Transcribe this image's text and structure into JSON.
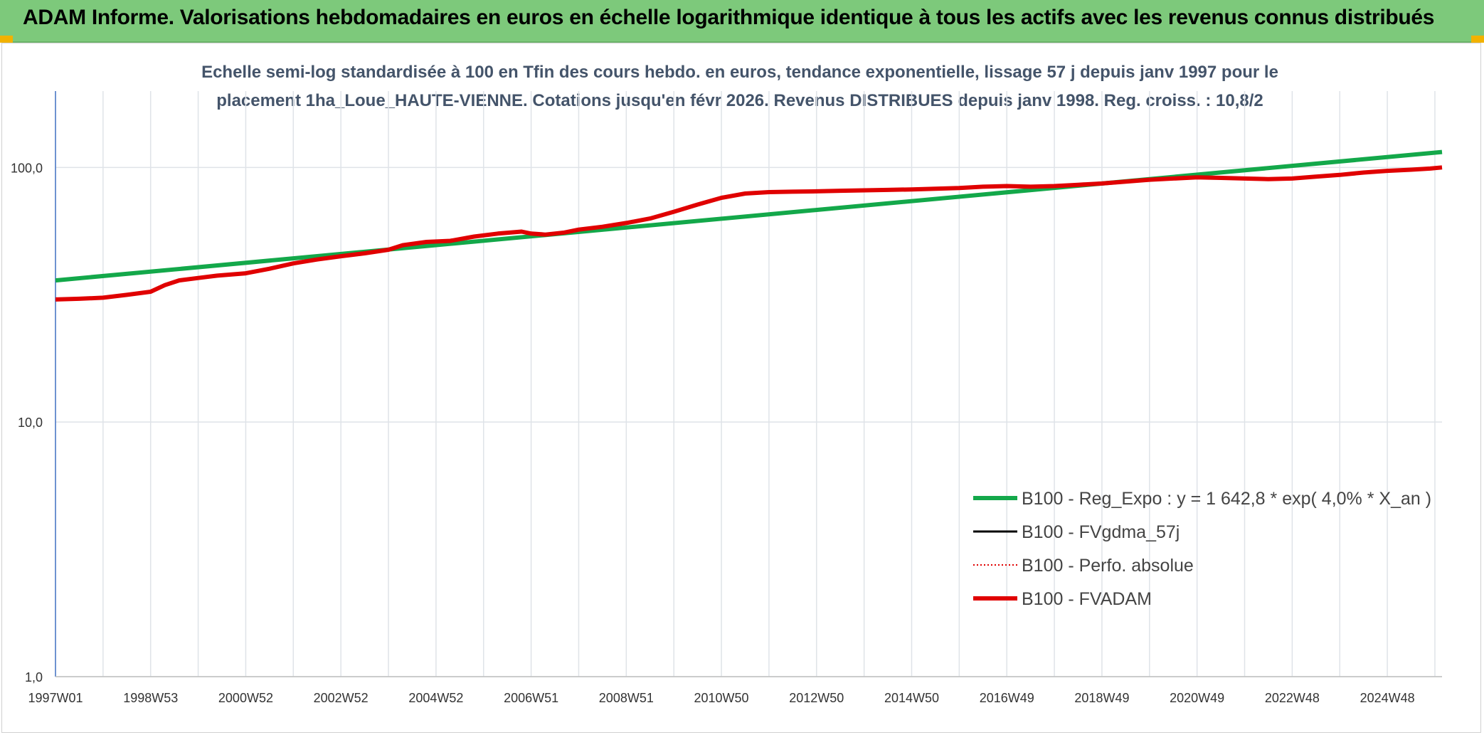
{
  "header": {
    "title": "ADAM Informe. Valorisations hebdomadaires en euros en échelle logarithmique identique à tous les actifs avec les revenus connus distribués"
  },
  "chart_data": {
    "type": "line",
    "title_line1": "Echelle semi-log standardisée à 100 en Tfin des cours hebdo. en euros, tendance exponentielle, lissage 57 j depuis janv 1997 pour le",
    "title_line2": "placement 1ha_Loue_HAUTE-VIENNE. Cotations jusqu'en févr 2026. Revenus DISTRIBUES depuis janv 1998. Reg. croiss. : 10,8/2",
    "y_scale": "log",
    "ylim": [
      1,
      200
    ],
    "y_ticks": [
      {
        "value": 1,
        "label": "1,0"
      },
      {
        "value": 10,
        "label": "10,0"
      },
      {
        "value": 100,
        "label": "100,0"
      }
    ],
    "x_range": [
      1997.0,
      2026.15
    ],
    "x_ticks": [
      {
        "x": 1997.0,
        "label": "1997W01"
      },
      {
        "x": 1999.0,
        "label": "1998W53"
      },
      {
        "x": 2001.0,
        "label": "2000W52"
      },
      {
        "x": 2003.0,
        "label": "2002W52"
      },
      {
        "x": 2005.0,
        "label": "2004W52"
      },
      {
        "x": 2007.0,
        "label": "2006W51"
      },
      {
        "x": 2009.0,
        "label": "2008W51"
      },
      {
        "x": 2011.0,
        "label": "2010W50"
      },
      {
        "x": 2013.0,
        "label": "2012W50"
      },
      {
        "x": 2015.0,
        "label": "2014W50"
      },
      {
        "x": 2017.0,
        "label": "2016W49"
      },
      {
        "x": 2019.0,
        "label": "2018W49"
      },
      {
        "x": 2021.0,
        "label": "2020W49"
      },
      {
        "x": 2023.0,
        "label": "2022W48"
      },
      {
        "x": 2025.0,
        "label": "2024W48"
      }
    ],
    "grid": true,
    "legend_position": "bottom-right",
    "series": [
      {
        "name": "B100 - Reg_Expo : y = 1 642,8 * exp( 4,0% *  X_an )",
        "color": "#13a84a",
        "style": "solid-thick",
        "points": [
          [
            1997.0,
            36
          ],
          [
            2026.15,
            115
          ]
        ]
      },
      {
        "name": "B100 - FVgdma_57j",
        "color": "#000000",
        "style": "solid",
        "points": []
      },
      {
        "name": "B100 - Perfo. absolue",
        "color": "#e00000",
        "style": "dotted",
        "points": []
      },
      {
        "name": "B100 - FVADAM",
        "color": "#e00000",
        "style": "solid-thick",
        "points": [
          [
            1997.0,
            30.3
          ],
          [
            1997.5,
            30.5
          ],
          [
            1998.0,
            30.8
          ],
          [
            1998.5,
            31.6
          ],
          [
            1999.0,
            32.5
          ],
          [
            1999.3,
            34.5
          ],
          [
            1999.6,
            36.0
          ],
          [
            2000.0,
            36.8
          ],
          [
            2000.4,
            37.6
          ],
          [
            2001.0,
            38.4
          ],
          [
            2001.5,
            40.0
          ],
          [
            2002.0,
            42.0
          ],
          [
            2002.5,
            43.5
          ],
          [
            2003.0,
            44.8
          ],
          [
            2003.5,
            46.0
          ],
          [
            2004.0,
            47.5
          ],
          [
            2004.3,
            49.5
          ],
          [
            2004.8,
            51.0
          ],
          [
            2005.3,
            51.5
          ],
          [
            2005.8,
            53.5
          ],
          [
            2006.3,
            55.0
          ],
          [
            2006.8,
            56.0
          ],
          [
            2007.0,
            55.0
          ],
          [
            2007.3,
            54.5
          ],
          [
            2007.7,
            55.5
          ],
          [
            2008.0,
            57.0
          ],
          [
            2008.5,
            58.5
          ],
          [
            2009.0,
            60.5
          ],
          [
            2009.5,
            63.0
          ],
          [
            2010.0,
            67.0
          ],
          [
            2010.5,
            71.5
          ],
          [
            2011.0,
            76.0
          ],
          [
            2011.5,
            79.0
          ],
          [
            2012.0,
            80.0
          ],
          [
            2012.5,
            80.3
          ],
          [
            2013.0,
            80.6
          ],
          [
            2013.5,
            81.0
          ],
          [
            2014.0,
            81.3
          ],
          [
            2014.5,
            81.6
          ],
          [
            2015.0,
            82.0
          ],
          [
            2015.5,
            82.5
          ],
          [
            2016.0,
            83.0
          ],
          [
            2016.5,
            84.0
          ],
          [
            2017.0,
            84.5
          ],
          [
            2017.5,
            84.0
          ],
          [
            2018.0,
            84.5
          ],
          [
            2018.5,
            85.5
          ],
          [
            2019.0,
            86.5
          ],
          [
            2019.5,
            88.0
          ],
          [
            2020.0,
            89.5
          ],
          [
            2020.5,
            90.5
          ],
          [
            2021.0,
            91.5
          ],
          [
            2021.5,
            91.0
          ],
          [
            2022.0,
            90.5
          ],
          [
            2022.5,
            90.0
          ],
          [
            2023.0,
            90.5
          ],
          [
            2023.5,
            92.0
          ],
          [
            2024.0,
            93.5
          ],
          [
            2024.5,
            95.5
          ],
          [
            2025.0,
            97.0
          ],
          [
            2025.5,
            98.0
          ],
          [
            2025.9,
            99.0
          ],
          [
            2026.15,
            100.0
          ]
        ]
      }
    ]
  }
}
